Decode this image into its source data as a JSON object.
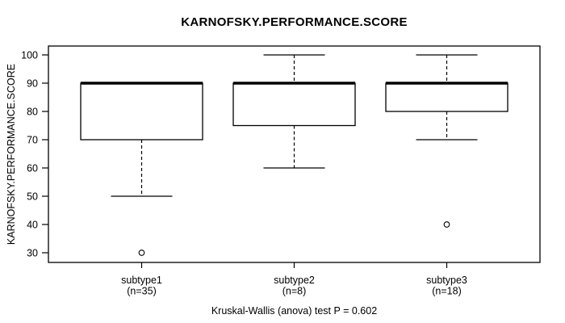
{
  "chart_data": {
    "type": "boxplot",
    "title": "KARNOFSKY.PERFORMANCE.SCORE",
    "ylabel": "KARNOFSKY.PERFORMANCE.SCORE",
    "xlabel": "",
    "caption": "Kruskal-Wallis (anova) test P = 0.602",
    "yticks": [
      30,
      40,
      50,
      60,
      70,
      80,
      90,
      100
    ],
    "ylim": [
      26,
      104
    ],
    "grid": false,
    "legend": "none",
    "whisker_line_style": "dashed",
    "groups": [
      {
        "label": "subtype1",
        "n_label": "(n=35)",
        "n": 35,
        "whisker_low": 50,
        "q1": 70,
        "median": 90,
        "q3": 90,
        "whisker_high": 90,
        "outliers": [
          30
        ]
      },
      {
        "label": "subtype2",
        "n_label": "(n=8)",
        "n": 8,
        "whisker_low": 60,
        "q1": 75,
        "median": 90,
        "q3": 90,
        "whisker_high": 100,
        "outliers": []
      },
      {
        "label": "subtype3",
        "n_label": "(n=18)",
        "n": 18,
        "whisker_low": 70,
        "q1": 80,
        "median": 90,
        "q3": 90,
        "whisker_high": 100,
        "outliers": [
          40
        ]
      }
    ],
    "colors": {
      "stroke": "#000000",
      "box_fill": "#ffffff",
      "background": "#ffffff"
    }
  }
}
